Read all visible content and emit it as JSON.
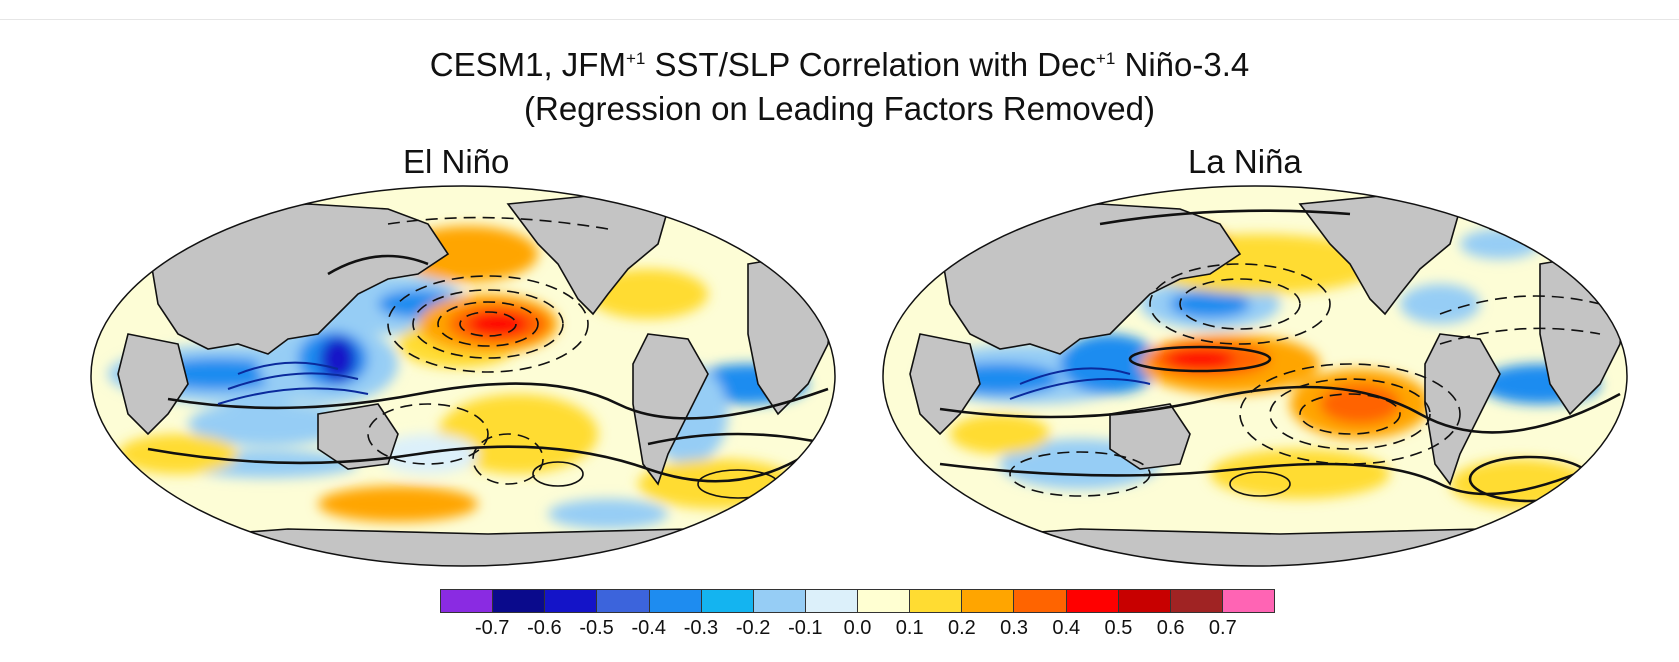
{
  "title": {
    "line1_prefix": "CESM1, JFM",
    "line1_sup1": "+1",
    "line1_mid": " SST/SLP Correlation with Dec",
    "line1_sup2": "+1",
    "line1_suffix": " Niño-3.4",
    "line2": "(Regression on Leading Factors Removed)"
  },
  "panels": {
    "left": {
      "title": "El Niño"
    },
    "right": {
      "title": "La Niña"
    }
  },
  "colorbar": {
    "colors": [
      "#8a2be2",
      "#0a0a8c",
      "#1414c8",
      "#3c64dc",
      "#1e8cf0",
      "#14b4f0",
      "#96cdf5",
      "#dcf0fa",
      "#ffffd2",
      "#ffdc32",
      "#ffa500",
      "#ff6400",
      "#ff0000",
      "#c80000",
      "#a02323",
      "#ff64b4"
    ],
    "labels": [
      "-0.7",
      "-0.6",
      "-0.5",
      "-0.4",
      "-0.3",
      "-0.2",
      "-0.1",
      "0.0",
      "0.1",
      "0.2",
      "0.3",
      "0.4",
      "0.5",
      "0.6",
      "0.7"
    ]
  },
  "colors": {
    "land": "#c4c4c4",
    "ocean_base": "#fdfdd6",
    "outline": "#111111"
  }
}
